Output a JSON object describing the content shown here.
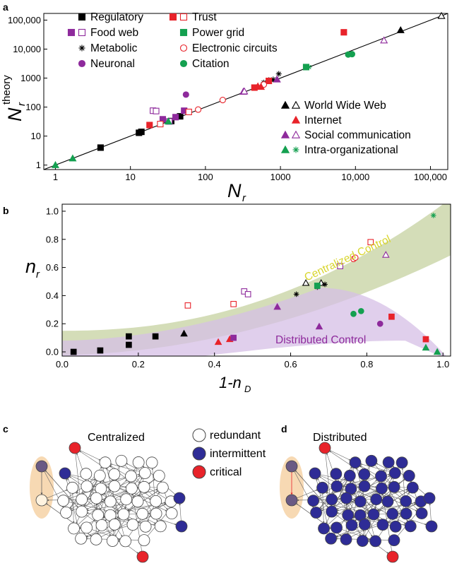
{
  "panel_labels": {
    "a": "a",
    "b": "b",
    "c": "c",
    "d": "d"
  },
  "chart_data": [
    {
      "type": "scatter",
      "panel": "a",
      "xlabel_main": "N",
      "xlabel_sub": "r",
      "ylabel_main": "N",
      "ylabel_sub": "r",
      "ylabel_sup": "theory",
      "xscale": "log",
      "yscale": "log",
      "xlim": [
        0.7,
        170000
      ],
      "ylim": [
        0.7,
        170000
      ],
      "xticks": [
        1,
        10,
        100,
        1000,
        10000,
        100000
      ],
      "xtick_labels": [
        "1",
        "10",
        "100",
        "1000",
        "10,000",
        "100,000"
      ],
      "yticks": [
        1,
        10,
        100,
        1000,
        10000,
        100000
      ],
      "ytick_labels": [
        "1",
        "10",
        "100",
        "1000",
        "10,000",
        "100,000"
      ],
      "reference_line": "y = x",
      "legend": [
        {
          "label": "Regulatory",
          "markers": [
            {
              "shape": "square",
              "fill": "#000000",
              "stroke": "#000000"
            }
          ]
        },
        {
          "label": "Food web",
          "markers": [
            {
              "shape": "square",
              "fill": "#8e2a9c",
              "stroke": "#8e2a9c"
            },
            {
              "shape": "square",
              "fill": "none",
              "stroke": "#8e2a9c"
            }
          ]
        },
        {
          "label": "Metabolic",
          "markers": [
            {
              "shape": "asterisk",
              "fill": "none",
              "stroke": "#000000"
            }
          ]
        },
        {
          "label": "Neuronal",
          "markers": [
            {
              "shape": "circle",
              "fill": "#8e2a9c",
              "stroke": "#8e2a9c"
            }
          ]
        },
        {
          "label": "Trust",
          "markers": [
            {
              "shape": "square",
              "fill": "#e8232a",
              "stroke": "#e8232a"
            },
            {
              "shape": "square",
              "fill": "none",
              "stroke": "#e8232a"
            }
          ]
        },
        {
          "label": "Power grid",
          "markers": [
            {
              "shape": "square",
              "fill": "#14a050",
              "stroke": "#14a050"
            }
          ]
        },
        {
          "label": "Electronic circuits",
          "markers": [
            {
              "shape": "circle",
              "fill": "none",
              "stroke": "#e8232a"
            }
          ]
        },
        {
          "label": "Citation",
          "markers": [
            {
              "shape": "circle",
              "fill": "#14a050",
              "stroke": "#14a050"
            }
          ]
        },
        {
          "label": "World Wide Web",
          "markers": [
            {
              "shape": "triangle",
              "fill": "#000000",
              "stroke": "#000000"
            },
            {
              "shape": "triangle",
              "fill": "none",
              "stroke": "#000000"
            }
          ]
        },
        {
          "label": "Internet",
          "markers": [
            {
              "shape": "triangle",
              "fill": "#e8232a",
              "stroke": "#e8232a"
            }
          ]
        },
        {
          "label": "Social communication",
          "markers": [
            {
              "shape": "triangle",
              "fill": "#8e2a9c",
              "stroke": "#8e2a9c"
            },
            {
              "shape": "triangle",
              "fill": "none",
              "stroke": "#8e2a9c"
            }
          ]
        },
        {
          "label": "Intra-organizational",
          "markers": [
            {
              "shape": "triangle",
              "fill": "#14a050",
              "stroke": "#14a050"
            },
            {
              "shape": "asterisk",
              "fill": "none",
              "stroke": "#14a050"
            }
          ]
        }
      ],
      "points": [
        [
          4,
          4,
          "square",
          "#000000",
          true
        ],
        [
          13,
          13,
          "square",
          "#000000",
          true
        ],
        [
          35,
          33,
          "square",
          "#000000",
          true
        ],
        [
          46,
          48,
          "square",
          "#000000",
          true
        ],
        [
          14,
          14,
          "square",
          "#000000",
          true
        ],
        [
          52,
          75,
          "square",
          "#8e2a9c",
          true
        ],
        [
          27,
          38,
          "square",
          "#8e2a9c",
          true
        ],
        [
          40,
          45,
          "square",
          "#8e2a9c",
          true
        ],
        [
          20,
          75,
          "square",
          "#8e2a9c",
          false
        ],
        [
          22,
          73,
          "square",
          "#8e2a9c",
          false
        ],
        [
          33,
          32,
          "square",
          "#8e2a9c",
          false
        ],
        [
          600,
          700,
          "asterisk",
          "#000000",
          false
        ],
        [
          700,
          850,
          "asterisk",
          "#000000",
          false
        ],
        [
          800,
          900,
          "asterisk",
          "#000000",
          false
        ],
        [
          950,
          1400,
          "asterisk",
          "#000000",
          false
        ],
        [
          55,
          270,
          "circle",
          "#8e2a9c",
          true
        ],
        [
          18,
          24,
          "square",
          "#e8232a",
          true
        ],
        [
          700,
          800,
          "square",
          "#e8232a",
          true
        ],
        [
          7000,
          38000,
          "square",
          "#e8232a",
          true
        ],
        [
          450,
          470,
          "square",
          "#e8232a",
          true
        ],
        [
          25,
          26,
          "square",
          "#e8232a",
          false
        ],
        [
          60,
          68,
          "square",
          "#e8232a",
          false
        ],
        [
          2200,
          2400,
          "square",
          "#14a050",
          true
        ],
        [
          80,
          82,
          "circle",
          "#e8232a",
          false
        ],
        [
          170,
          175,
          "circle",
          "#e8232a",
          false
        ],
        [
          600,
          600,
          "circle",
          "#e8232a",
          false
        ],
        [
          8000,
          6500,
          "circle",
          "#14a050",
          true
        ],
        [
          9000,
          6700,
          "circle",
          "#14a050",
          true
        ],
        [
          40000,
          45000,
          "triangle",
          "#000000",
          true
        ],
        [
          140000,
          140000,
          "triangle",
          "#000000",
          false
        ],
        [
          500,
          520,
          "triangle",
          "#e8232a",
          true
        ],
        [
          550,
          500,
          "triangle",
          "#e8232a",
          true
        ],
        [
          320,
          340,
          "triangle",
          "#8e2a9c",
          true
        ],
        [
          900,
          900,
          "triangle",
          "#8e2a9c",
          true
        ],
        [
          330,
          350,
          "triangle",
          "#8e2a9c",
          false
        ],
        [
          24000,
          20000,
          "triangle",
          "#8e2a9c",
          false
        ],
        [
          1,
          1,
          "triangle",
          "#14a050",
          true
        ],
        [
          1.7,
          1.7,
          "triangle",
          "#14a050",
          true
        ],
        [
          32,
          32,
          "triangle",
          "#14a050",
          true
        ],
        [
          2400,
          2400,
          "asterisk",
          "#14a050",
          false
        ]
      ]
    },
    {
      "type": "scatter",
      "panel": "b",
      "xlabel": "1-n",
      "xlabel_sub": "D",
      "ylabel": "n",
      "ylabel_sub": "r",
      "xlim": [
        0,
        1.02
      ],
      "ylim": [
        -0.03,
        1.05
      ],
      "xticks": [
        0.0,
        0.2,
        0.4,
        0.6,
        0.8,
        1.0
      ],
      "xtick_labels": [
        "0.0",
        "0.2",
        "0.4",
        "0.6",
        "0.8",
        "1.0"
      ],
      "yticks": [
        0.0,
        0.2,
        0.4,
        0.6,
        0.8,
        1.0
      ],
      "ytick_labels": [
        "0.0",
        "0.2",
        "0.4",
        "0.6",
        "0.8",
        "1.0"
      ],
      "bands": [
        {
          "label": "Centralized Control",
          "color": "#c9d4a6",
          "label_color": "#d8d52c"
        },
        {
          "label": "Distributed Control",
          "color": "#d6bfe6",
          "label_color": "#8e2a9c"
        }
      ],
      "points": [
        [
          0.03,
          0.0,
          "square",
          "#000000",
          true
        ],
        [
          0.1,
          0.01,
          "square",
          "#000000",
          true
        ],
        [
          0.175,
          0.05,
          "square",
          "#000000",
          true
        ],
        [
          0.175,
          0.11,
          "square",
          "#000000",
          true
        ],
        [
          0.245,
          0.11,
          "square",
          "#000000",
          true
        ],
        [
          0.32,
          0.13,
          "triangle",
          "#000000",
          true
        ],
        [
          0.64,
          0.49,
          "triangle",
          "#000000",
          false
        ],
        [
          0.68,
          0.49,
          "triangle",
          "#000000",
          false
        ],
        [
          0.41,
          0.07,
          "triangle",
          "#e8232a",
          true
        ],
        [
          0.44,
          0.09,
          "triangle",
          "#e8232a",
          true
        ],
        [
          0.45,
          0.1,
          "square",
          "#8e2a9c",
          true
        ],
        [
          0.565,
          0.32,
          "triangle",
          "#8e2a9c",
          true
        ],
        [
          0.675,
          0.18,
          "triangle",
          "#8e2a9c",
          true
        ],
        [
          0.835,
          0.2,
          "circle",
          "#8e2a9c",
          true
        ],
        [
          0.85,
          0.69,
          "triangle",
          "#8e2a9c",
          false
        ],
        [
          0.33,
          0.33,
          "square",
          "#e8232a",
          false
        ],
        [
          0.45,
          0.34,
          "square",
          "#e8232a",
          false
        ],
        [
          0.478,
          0.43,
          "square",
          "#8e2a9c",
          false
        ],
        [
          0.488,
          0.41,
          "square",
          "#8e2a9c",
          false
        ],
        [
          0.73,
          0.61,
          "square",
          "#8e2a9c",
          false
        ],
        [
          0.81,
          0.78,
          "square",
          "#e8232a",
          false
        ],
        [
          0.615,
          0.41,
          "asterisk",
          "#000000",
          false
        ],
        [
          0.67,
          0.46,
          "asterisk",
          "#000000",
          false
        ],
        [
          0.69,
          0.48,
          "asterisk",
          "#000000",
          false
        ],
        [
          0.67,
          0.47,
          "square",
          "#14a050",
          true
        ],
        [
          0.765,
          0.66,
          "circle",
          "#e8232a",
          false
        ],
        [
          0.77,
          0.67,
          "circle",
          "#e8232a",
          false
        ],
        [
          0.765,
          0.27,
          "circle",
          "#14a050",
          true
        ],
        [
          0.785,
          0.29,
          "circle",
          "#14a050",
          true
        ],
        [
          0.865,
          0.25,
          "square",
          "#e8232a",
          true
        ],
        [
          0.955,
          0.09,
          "square",
          "#e8232a",
          true
        ],
        [
          0.955,
          0.03,
          "triangle",
          "#14a050",
          true
        ],
        [
          0.985,
          0.0,
          "triangle",
          "#14a050",
          true
        ],
        [
          0.975,
          0.97,
          "asterisk",
          "#14a050",
          false
        ]
      ]
    }
  ],
  "networks": {
    "centralized": {
      "title": "Centralized"
    },
    "distributed": {
      "title": "Distributed"
    },
    "legend": [
      {
        "label": "redundant",
        "color": "#ffffff"
      },
      {
        "label": "intermittent",
        "color": "#2e2c96"
      },
      {
        "label": "critical",
        "color": "#e8232a"
      }
    ]
  }
}
